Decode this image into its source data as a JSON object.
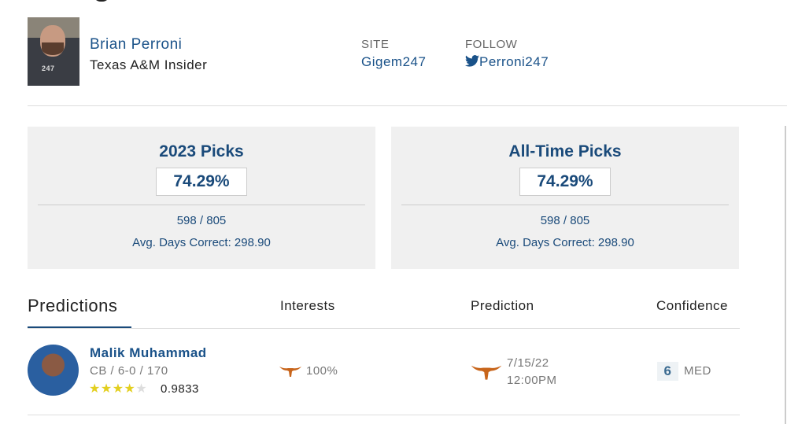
{
  "author": {
    "name": "Brian Perroni",
    "title": "Texas A&M Insider",
    "site_label": "SITE",
    "site": "Gigem247",
    "follow_label": "FOLLOW",
    "twitter": "Perroni247",
    "photo_logo": "247 SPORTS"
  },
  "cards": [
    {
      "title": "2023 Picks",
      "percent": "74.29%",
      "record": "598 / 805",
      "avg": "Avg. Days Correct: 298.90"
    },
    {
      "title": "All-Time Picks",
      "percent": "74.29%",
      "record": "598 / 805",
      "avg": "Avg. Days Correct: 298.90"
    }
  ],
  "predictions": {
    "headers": {
      "title": "Predictions",
      "interests": "Interests",
      "prediction": "Prediction",
      "confidence": "Confidence"
    },
    "rows": [
      {
        "name": "Malik Muhammad",
        "details": "CB / 6-0 / 170",
        "stars": 4,
        "max_stars": 5,
        "rating": "0.9833",
        "interest_team_icon": "texas-longhorn",
        "interest": "100%",
        "prediction_team_icon": "texas-longhorn",
        "date": "7/15/22",
        "time": "12:00PM",
        "confidence": "6",
        "confidence_label": "MED"
      }
    ]
  },
  "colors": {
    "link": "#1a5289",
    "longhorn": "#c8651b",
    "star": "#e3cf1f"
  }
}
